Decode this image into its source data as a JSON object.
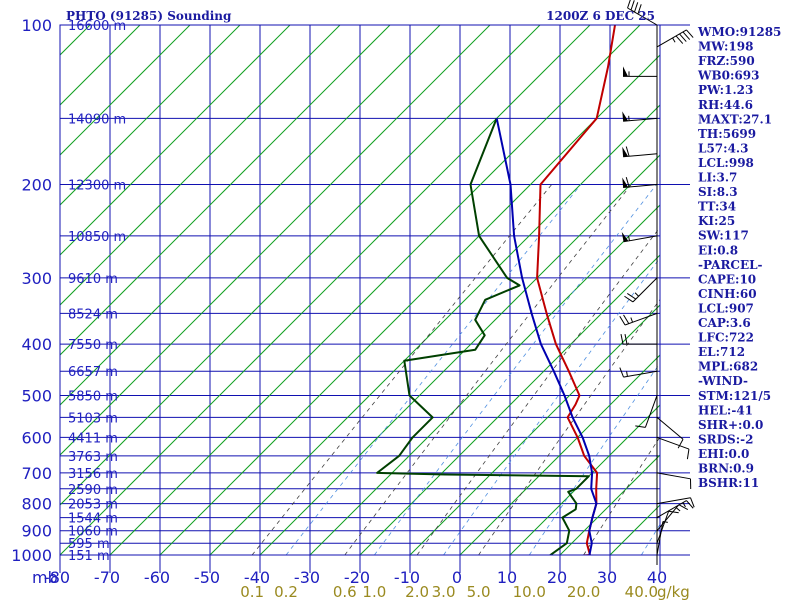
{
  "chart_data": {
    "type": "line",
    "title_left": "PHTO (91285) Sounding",
    "title_right": "1200Z  6 DEC 25",
    "y_unit_label": "mb",
    "w_unit_label": "g/kg",
    "pressure_levels": [
      100,
      200,
      300,
      400,
      500,
      600,
      700,
      800,
      900,
      1000
    ],
    "pressure_range": [
      100,
      1000
    ],
    "temperature_ticks": [
      -80,
      -70,
      -60,
      -50,
      -40,
      -30,
      -20,
      -10,
      0,
      10,
      20,
      30,
      40
    ],
    "temperature_range": [
      -80,
      40
    ],
    "mixing_ratio_labels": [
      "0.1",
      "0.2",
      "0.6",
      "1.0",
      "2.0",
      "3.0",
      "5.0",
      "10.0",
      "20.0",
      "40.0"
    ],
    "mixing_ratio_values": [
      0.1,
      0.2,
      0.6,
      1.0,
      2.0,
      3.0,
      5.0,
      10.0,
      20.0,
      40.0
    ],
    "height_labels": [
      {
        "p": 100,
        "text": "16600 m"
      },
      {
        "p": 150,
        "text": "14090 m"
      },
      {
        "p": 200,
        "text": "12300 m"
      },
      {
        "p": 250,
        "text": "10850 m"
      },
      {
        "p": 300,
        "text": "9610 m"
      },
      {
        "p": 350,
        "text": "8524 m"
      },
      {
        "p": 400,
        "text": "7550 m"
      },
      {
        "p": 450,
        "text": "6657 m"
      },
      {
        "p": 500,
        "text": "5850 m"
      },
      {
        "p": 550,
        "text": "5103 m"
      },
      {
        "p": 600,
        "text": "4411 m"
      },
      {
        "p": 650,
        "text": "3763 m"
      },
      {
        "p": 700,
        "text": "3156 m"
      },
      {
        "p": 750,
        "text": "2590 m"
      },
      {
        "p": 800,
        "text": "2053 m"
      },
      {
        "p": 850,
        "text": "1544 m"
      },
      {
        "p": 900,
        "text": "1060 m"
      },
      {
        "p": 950,
        "text": "595 m"
      },
      {
        "p": 1000,
        "text": "151 m"
      }
    ],
    "series": [
      {
        "key": "temperature",
        "color": "#c00000",
        "points": [
          [
            100,
            -75
          ],
          [
            120,
            -68
          ],
          [
            150,
            -60
          ],
          [
            200,
            -58
          ],
          [
            250,
            -48
          ],
          [
            300,
            -40
          ],
          [
            350,
            -31
          ],
          [
            400,
            -23
          ],
          [
            450,
            -15
          ],
          [
            500,
            -8
          ],
          [
            520,
            -7
          ],
          [
            550,
            -6
          ],
          [
            600,
            0
          ],
          [
            650,
            5
          ],
          [
            700,
            11
          ],
          [
            750,
            14
          ],
          [
            800,
            17
          ],
          [
            850,
            19
          ],
          [
            900,
            21
          ],
          [
            950,
            23
          ],
          [
            1000,
            26
          ],
          [
            1005,
            23
          ]
        ]
      },
      {
        "key": "dewpoint",
        "color": "#004000",
        "points": [
          [
            150,
            -80
          ],
          [
            200,
            -72
          ],
          [
            250,
            -60
          ],
          [
            300,
            -46
          ],
          [
            310,
            -42
          ],
          [
            330,
            -46
          ],
          [
            360,
            -44
          ],
          [
            385,
            -39
          ],
          [
            410,
            -38
          ],
          [
            430,
            -50
          ],
          [
            500,
            -42
          ],
          [
            550,
            -33
          ],
          [
            600,
            -33
          ],
          [
            650,
            -32
          ],
          [
            700,
            -33
          ],
          [
            705,
            -19
          ],
          [
            710,
            10
          ],
          [
            750,
            10
          ],
          [
            760,
            9
          ],
          [
            800,
            13
          ],
          [
            820,
            14
          ],
          [
            850,
            13
          ],
          [
            900,
            17
          ],
          [
            950,
            19
          ],
          [
            1005,
            18
          ]
        ]
      },
      {
        "key": "parcel",
        "color": "#0000b0",
        "points": [
          [
            150,
            -80
          ],
          [
            200,
            -64
          ],
          [
            250,
            -53
          ],
          [
            300,
            -43
          ],
          [
            350,
            -34
          ],
          [
            400,
            -26
          ],
          [
            450,
            -18
          ],
          [
            500,
            -11
          ],
          [
            550,
            -5
          ],
          [
            600,
            1
          ],
          [
            650,
            6
          ],
          [
            700,
            10
          ],
          [
            750,
            13
          ],
          [
            800,
            17
          ],
          [
            850,
            19
          ],
          [
            900,
            21
          ],
          [
            950,
            24
          ],
          [
            1003,
            26
          ]
        ]
      }
    ],
    "wind_barbs": [
      {
        "p": 100,
        "dir": 300,
        "spd": 40
      },
      {
        "p": 110,
        "dir": 60,
        "spd": 45
      },
      {
        "p": 125,
        "dir": 270,
        "spd": 55
      },
      {
        "p": 150,
        "dir": 265,
        "spd": 55
      },
      {
        "p": 175,
        "dir": 265,
        "spd": 60
      },
      {
        "p": 200,
        "dir": 265,
        "spd": 60
      },
      {
        "p": 250,
        "dir": 260,
        "spd": 55
      },
      {
        "p": 300,
        "dir": 225,
        "spd": 25
      },
      {
        "p": 350,
        "dir": 250,
        "spd": 25
      },
      {
        "p": 400,
        "dir": 270,
        "spd": 20
      },
      {
        "p": 450,
        "dir": 260,
        "spd": 15
      },
      {
        "p": 500,
        "dir": 200,
        "spd": 10
      },
      {
        "p": 550,
        "dir": 130,
        "spd": 10
      },
      {
        "p": 600,
        "dir": 110,
        "spd": 10
      },
      {
        "p": 700,
        "dir": 100,
        "spd": 10
      },
      {
        "p": 800,
        "dir": 80,
        "spd": 10
      },
      {
        "p": 850,
        "dir": 60,
        "spd": 15
      },
      {
        "p": 900,
        "dir": 40,
        "spd": 15
      },
      {
        "p": 950,
        "dir": 20,
        "spd": 10
      },
      {
        "p": 1000,
        "dir": 10,
        "spd": 5
      }
    ],
    "indices": [
      "WMO:91285",
      "MW:198",
      "FRZ:590",
      "WB0:693",
      "PW:1.23",
      "RH:44.6",
      "MAXT:27.1",
      "TH:5699",
      "L57:4.3",
      "LCL:998",
      "LI:3.7",
      "SI:8.3",
      "TT:34",
      "KI:25",
      "SW:117",
      "EI:0.8",
      "-PARCEL-",
      "CAPE:10",
      "CINH:60",
      "LCL:907",
      "CAP:3.6",
      "LFC:722",
      "EL:712",
      "MPL:682",
      "-WIND-",
      "STM:121/5",
      "HEL:-41",
      "SHR+:0.0",
      "SRDS:-2",
      "EHI:0.0",
      "BRN:0.9",
      "BSHR:11"
    ]
  }
}
